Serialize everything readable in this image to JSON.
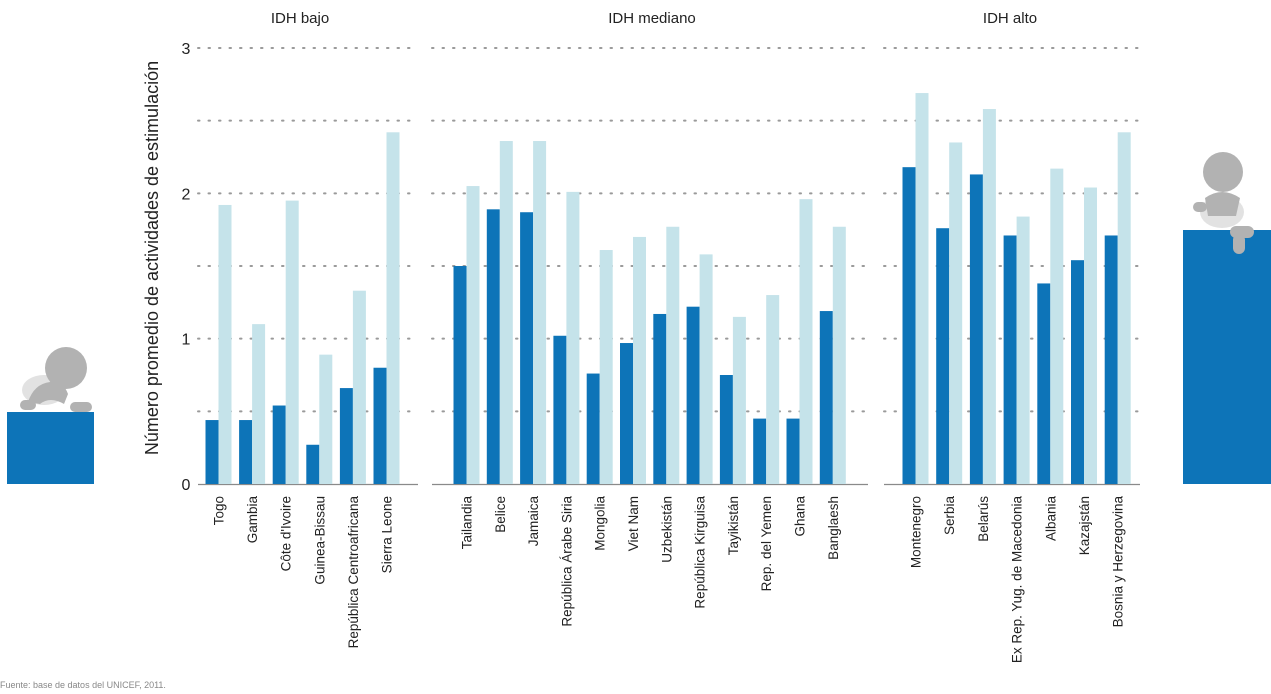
{
  "colors": {
    "dark_series": "#0d74b8",
    "light_series": "#c5e3ea",
    "baby_gray": "#b2b2b2",
    "baby_light": "#e2e2e2"
  },
  "icons": {
    "left": "crawling-baby-icon",
    "right": "sitting-baby-icon"
  },
  "chart_data": {
    "type": "bar",
    "ylabel": "Número promedio de actividades de estimulación",
    "xlabel": "",
    "ylim": [
      0,
      3
    ],
    "yticks": [
      0,
      1,
      2,
      3
    ],
    "grid": true,
    "groups": [
      {
        "label": "IDH bajo",
        "categories": [
          "Togo",
          "Gambia",
          "Côte d'Ivoire",
          "Guinea-Bissau",
          "República Centroafricana",
          "Sierra Leone"
        ],
        "series": [
          {
            "values": [
              0.44,
              0.44,
              0.54,
              0.27,
              0.66,
              0.8
            ]
          },
          {
            "values": [
              1.92,
              1.1,
              1.95,
              0.89,
              1.33,
              2.42
            ]
          }
        ]
      },
      {
        "label": "IDH mediano",
        "categories": [
          "Tailandia",
          "Belice",
          "Jamaica",
          "República Árabe Siria",
          "Mongolia",
          "Viet Nam",
          "Uzbekistán",
          "República Kirguisa",
          "Tayikistán",
          "Rep. del Yemen",
          "Ghana",
          "Banglaesh"
        ],
        "series": [
          {
            "values": [
              1.5,
              1.89,
              1.87,
              1.02,
              0.76,
              0.97,
              1.17,
              1.22,
              0.75,
              0.45,
              0.45,
              1.19
            ]
          },
          {
            "values": [
              2.05,
              2.36,
              2.36,
              2.01,
              1.61,
              1.7,
              1.77,
              1.58,
              1.15,
              1.3,
              1.96,
              1.77
            ]
          }
        ]
      },
      {
        "label": "IDH alto",
        "categories": [
          "Montenegro",
          "Serbia",
          "Belarús",
          "Ex Rep. Yug. de Macedonia",
          "Albania",
          "Kazajstán",
          "Bosnia y Herzegovina"
        ],
        "series": [
          {
            "values": [
              2.18,
              1.76,
              2.13,
              1.71,
              1.38,
              1.54,
              1.71
            ]
          },
          {
            "values": [
              2.69,
              2.35,
              2.58,
              1.84,
              2.17,
              2.04,
              2.42
            ]
          }
        ]
      }
    ]
  },
  "footnote": "Fuente: base de datos del UNICEF, 2011."
}
